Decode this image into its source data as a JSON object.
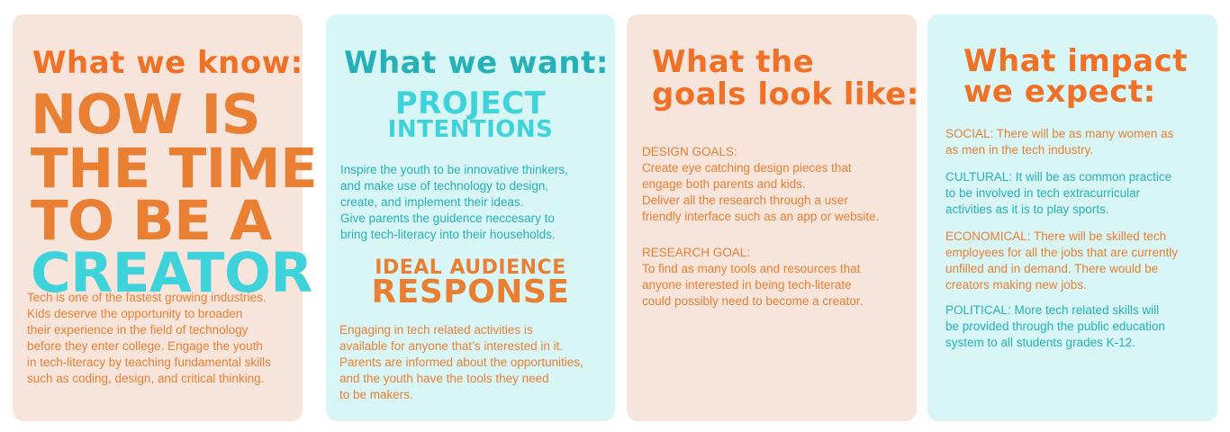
{
  "card1": {
    "heading": "What we know:",
    "big_lines": [
      "NOW IS",
      "THE TIME",
      "TO BE A",
      "CREATOR"
    ],
    "body": "Tech is one of the fastest growing industries.\nKids deserve the opportunity to broaden\ntheir experience in the field of technology\nbefore  they enter college. Engage the youth\nin tech-literacy by teaching fundamental skills\nsuch as coding, design, and critical thinking."
  },
  "card2": {
    "heading": "What we want:",
    "sub1_line1": "PROJECT",
    "sub1_line2": "INTENTIONS",
    "body1": "Inspire the youth to be innovative thinkers,\nand make use of technology to design,\ncreate, and implement their ideas.\nGive parents the guidence neccesary to\nbring tech-literacy into their households.",
    "sub2_line1": "IDEAL AUDIENCE",
    "sub2_line2": "RESPONSE",
    "body2": "Engaging in tech related activities is\navailable for anyone that’s interested in it.\nParents are informed about the opportunities,\nand the youth have the tools they need\nto be makers."
  },
  "card3": {
    "heading_line1": "What the",
    "heading_line2": "goals look like:",
    "design": "DESIGN GOALS:\nCreate eye catching design pieces that\nengage both parents and kids.\nDeliver all the research through a user\nfriendly interface such as an app or website.",
    "research": "RESEARCH GOAL:\nTo find as many tools and resources that\nanyone interested in being tech-literate\ncould possibly need to become a creator."
  },
  "card4": {
    "heading_line1": "What impact",
    "heading_line2": "we expect:",
    "social": "SOCIAL: There will be as many women as\nas men in the tech industry.",
    "cultural": "CULTURAL: It will be as common practice\nto be involved in tech extracurricular\nactivities as it is to play sports.",
    "economical": "ECONOMICAL: There will be skilled tech\nemployees for all the jobs that are currently\nunfilled and in demand. There would be\ncreators making new jobs.",
    "political": "POLITICAL: More tech related skills will\nbe provided through the public education\nsystem to all students grades K-12."
  },
  "colors": {
    "peach": "#f7e5dc",
    "mint": "#d8f6f6",
    "orange": "#f07025",
    "teal": "#26b0b8",
    "dark_orange": "#e97f33",
    "cyan": "#3ed3db"
  }
}
